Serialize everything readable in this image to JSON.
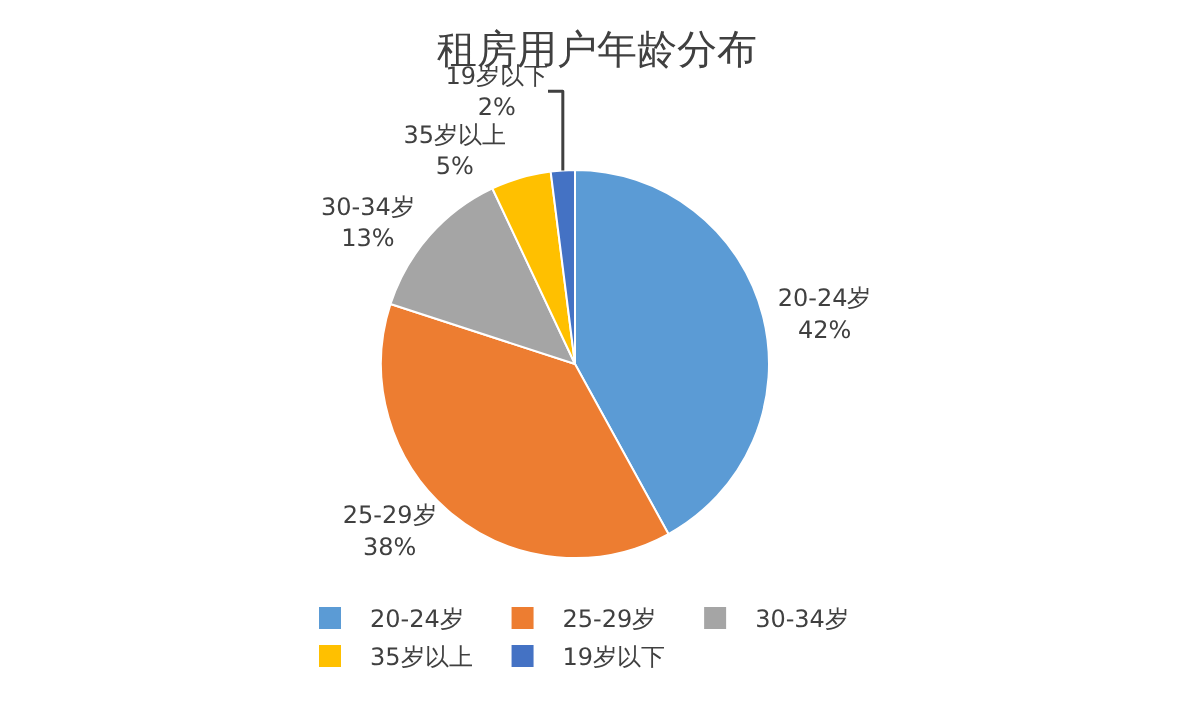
{
  "chart_data": {
    "type": "pie",
    "title": "租房用户年龄分布",
    "categories": [
      "20-24岁",
      "25-29岁",
      "30-34岁",
      "35岁以上",
      "19岁以下"
    ],
    "values": [
      42,
      38,
      13,
      5,
      2
    ],
    "value_labels": [
      "42%",
      "38%",
      "13%",
      "5%",
      "2%"
    ],
    "colors": [
      "#5b9bd5",
      "#ed7d31",
      "#a5a5a5",
      "#ffc000",
      "#4472c4"
    ],
    "legend": "bottom"
  }
}
